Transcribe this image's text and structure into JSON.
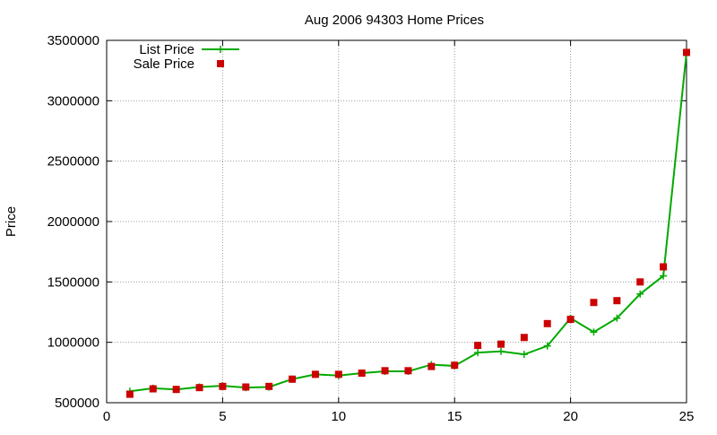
{
  "chart_data": {
    "type": "line",
    "title": "Aug 2006 94303 Home Prices",
    "xlabel": "",
    "ylabel": "Price",
    "xlim": [
      0,
      25
    ],
    "ylim": [
      500000,
      3500000
    ],
    "xticks": [
      0,
      5,
      10,
      15,
      20,
      25
    ],
    "yticks": [
      500000,
      1000000,
      1500000,
      2000000,
      2500000,
      3000000,
      3500000
    ],
    "grid": true,
    "legend_position": "top-left",
    "series": [
      {
        "name": "List Price",
        "style": "line-with-plus",
        "color": "#00aa00",
        "x": [
          1,
          2,
          3,
          4,
          5,
          6,
          7,
          8,
          9,
          10,
          11,
          12,
          13,
          14,
          15,
          16,
          17,
          18,
          19,
          20,
          21,
          22,
          23,
          24,
          25
        ],
        "y": [
          595000,
          620000,
          610000,
          630000,
          640000,
          625000,
          630000,
          695000,
          735000,
          725000,
          745000,
          760000,
          760000,
          815000,
          805000,
          915000,
          925000,
          900000,
          970000,
          1200000,
          1085000,
          1200000,
          1400000,
          1550000,
          3400000
        ]
      },
      {
        "name": "Sale Price",
        "style": "square-markers",
        "color": "#cc0000",
        "x": [
          1,
          2,
          3,
          4,
          5,
          6,
          7,
          8,
          9,
          10,
          11,
          12,
          13,
          14,
          15,
          16,
          17,
          18,
          19,
          20,
          21,
          22,
          23,
          24,
          25
        ],
        "y": [
          570000,
          615000,
          610000,
          625000,
          635000,
          630000,
          635000,
          695000,
          735000,
          735000,
          745000,
          765000,
          765000,
          800000,
          810000,
          975000,
          985000,
          1040000,
          1155000,
          1190000,
          1330000,
          1345000,
          1500000,
          1625000,
          3400000
        ]
      }
    ]
  }
}
